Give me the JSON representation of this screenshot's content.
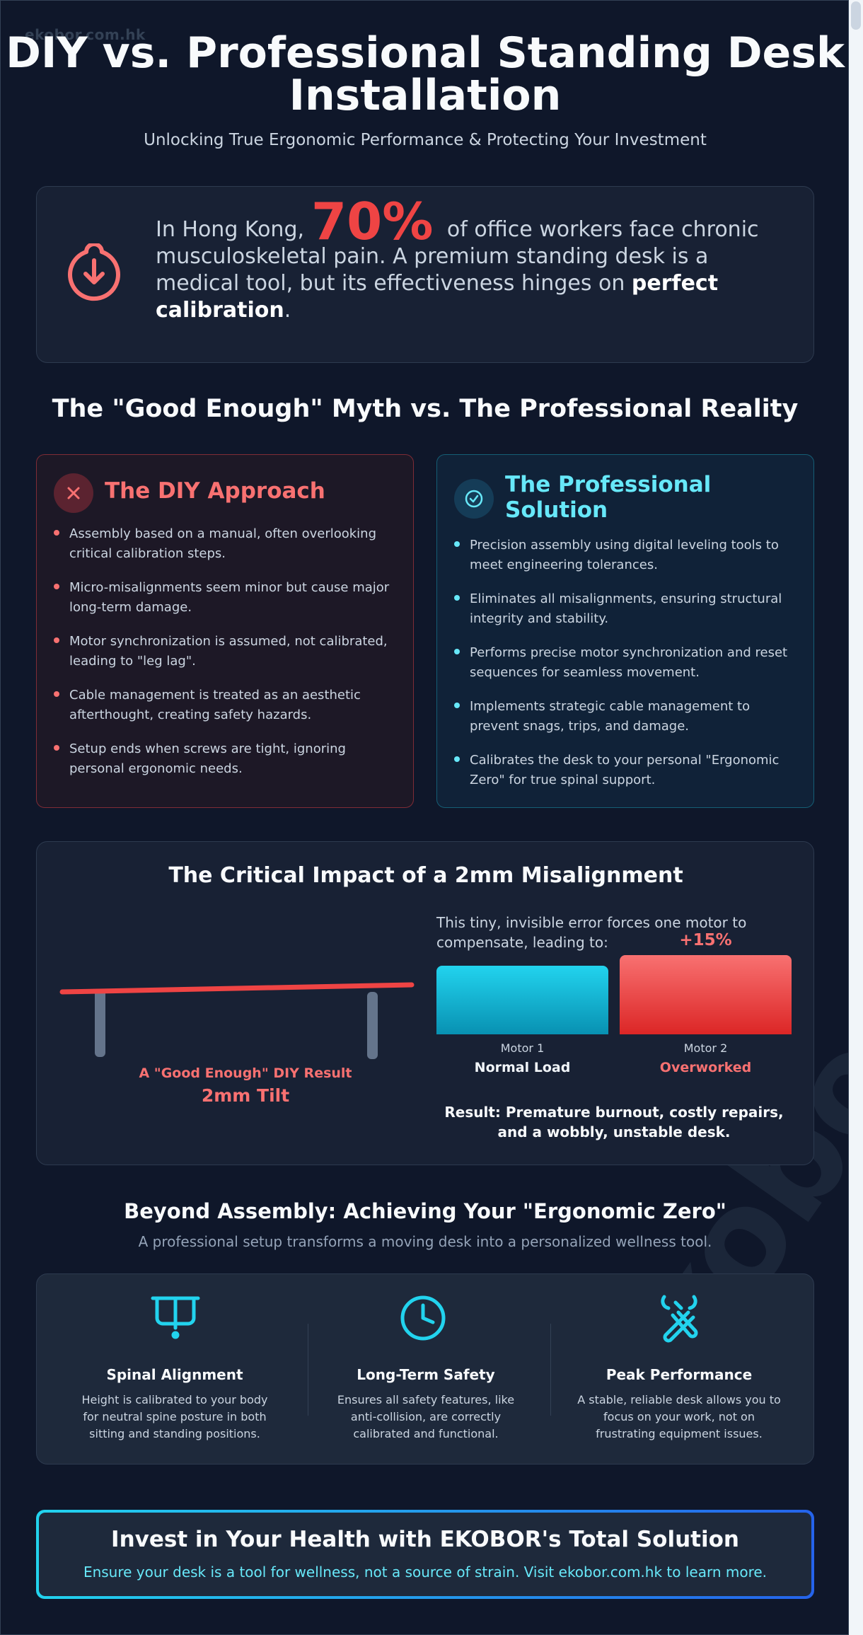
{
  "watermark": "ekobor.com.hk",
  "watermark_large": "ekobor.com.hk",
  "header": {
    "title": "DIY vs. Professional Standing Desk Installation",
    "subtitle": "Unlocking True Ergonomic Performance & Protecting Your Investment"
  },
  "intro": {
    "icon": "download-circle-icon",
    "prefix": "In Hong Kong,",
    "stat": "70%",
    "middle": "of office workers face chronic musculoskeletal pain. A premium standing desk is a medical tool, but its effectiveness hinges on",
    "emphasis": "perfect calibration",
    "suffix": "."
  },
  "myth_heading": "The \"Good Enough\" Myth vs. The Professional Reality",
  "diy": {
    "icon": "x-icon",
    "title": "The DIY Approach",
    "points": [
      "Assembly based on a manual, often overlooking critical calibration steps.",
      "Micro-misalignments seem minor but cause major long-term damage.",
      "Motor synchronization is assumed, not calibrated, leading to \"leg lag\".",
      "Cable management is treated as an aesthetic afterthought, creating safety hazards.",
      "Setup ends when screws are tight, ignoring personal ergonomic needs."
    ]
  },
  "pro": {
    "icon": "check-circle-icon",
    "title": "The Professional Solution",
    "points": [
      "Precision assembly using digital leveling tools to meet engineering tolerances.",
      "Eliminates all misalignments, ensuring structural integrity and stability.",
      "Performs precise motor synchronization and reset sequences for seamless movement.",
      "Implements strategic cable management to prevent snags, trips, and damage.",
      "Calibrates the desk to your personal \"Ergonomic Zero\" for true spinal support."
    ]
  },
  "impact": {
    "title": "The Critical Impact of a 2mm Misalignment",
    "desk_caption": "A \"Good Enough\" DIY Result",
    "desk_value": "2mm Tilt",
    "description": "This tiny, invisible error forces one motor to compensate, leading to:",
    "result": "Result: Premature burnout, costly repairs, and a wobbly, unstable desk.",
    "colors": {
      "normal": "#22d3ee",
      "overworked": "#ef4444"
    }
  },
  "chart_data": {
    "type": "bar",
    "categories": [
      "Motor 1",
      "Motor 2"
    ],
    "values": [
      100,
      115
    ],
    "value_labels": [
      "",
      "+15%"
    ],
    "status_labels": [
      "Normal Load",
      "Overworked"
    ],
    "ylim": [
      0,
      115
    ]
  },
  "benefits": {
    "title": "Beyond Assembly: Achieving Your \"Ergonomic Zero\"",
    "subtitle": "A professional setup transforms a moving desk into a personalized wellness tool.",
    "items": [
      {
        "icon": "desk-icon",
        "title": "Spinal Alignment",
        "text": "Height is calibrated to your body for neutral spine posture in both sitting and standing positions."
      },
      {
        "icon": "clock-icon",
        "title": "Long-Term Safety",
        "text": "Ensures all safety features, like anti-collision, are correctly calibrated and functional."
      },
      {
        "icon": "tools-icon",
        "title": "Peak Performance",
        "text": "A stable, reliable desk allows you to focus on your work, not on frustrating equipment issues."
      }
    ]
  },
  "cta": {
    "title": "Invest in Your Health with EKOBOR's Total Solution",
    "text": "Ensure your desk is a tool for wellness, not a source of strain. Visit ekobor.com.hk to learn more."
  }
}
